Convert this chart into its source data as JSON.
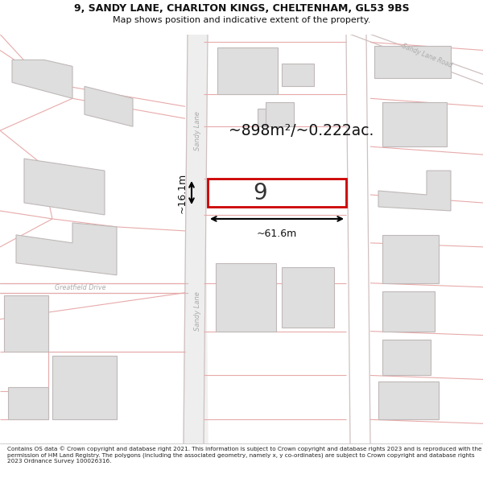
{
  "title_line1": "9, SANDY LANE, CHARLTON KINGS, CHELTENHAM, GL53 9BS",
  "title_line2": "Map shows position and indicative extent of the property.",
  "footer_text": "Contains OS data © Crown copyright and database right 2021. This information is subject to Crown copyright and database rights 2023 and is reproduced with the permission of HM Land Registry. The polygons (including the associated geometry, namely x, y co-ordinates) are subject to Crown copyright and database rights 2023 Ordnance Survey 100026316.",
  "area_label": "~898m²/~0.222ac.",
  "width_label": "~61.6m",
  "height_label": "~16.1m",
  "plot_number": "9",
  "map_bg": "#f7f7f7",
  "plot_fill": "#ffffff",
  "plot_border": "#cc0000",
  "building_color": "#dedede",
  "building_border": "#c0b8b8",
  "road_line_color": "#e8aaaa",
  "road_label_color": "#aaaaaa",
  "dim_color": "#111111",
  "title_color": "#111111",
  "footer_color": "#222222",
  "road_fill": "#f0f0f0"
}
